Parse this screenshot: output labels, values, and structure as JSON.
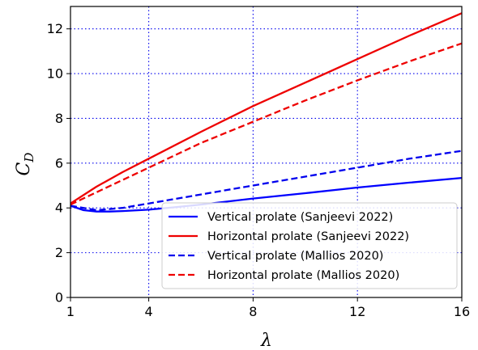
{
  "chart_data": {
    "type": "line",
    "title": "",
    "xlabel": "λ",
    "ylabel": "C",
    "ylabel_subscript": "D",
    "xlim": [
      1,
      16
    ],
    "ylim": [
      0,
      13
    ],
    "xticks": [
      1,
      4,
      8,
      12,
      16
    ],
    "yticks": [
      0,
      2,
      4,
      6,
      8,
      10,
      12
    ],
    "grid": true,
    "grid_color": "#0000ee",
    "legend_position": "lower-right",
    "series": [
      {
        "name": "Vertical prolate (Sanjeevi 2022)",
        "color": "#0000ff",
        "dash": "solid",
        "x": [
          1,
          1.5,
          2,
          2.5,
          3,
          4,
          5,
          6,
          8,
          10,
          12,
          14,
          16
        ],
        "y": [
          4.1,
          3.9,
          3.84,
          3.84,
          3.86,
          3.92,
          4.03,
          4.15,
          4.42,
          4.66,
          4.91,
          5.13,
          5.34
        ]
      },
      {
        "name": "Horizontal prolate (Sanjeevi 2022)",
        "color": "#ee0000",
        "dash": "solid",
        "x": [
          1,
          2,
          3,
          4,
          6,
          8,
          10,
          12,
          14,
          16
        ],
        "y": [
          4.2,
          4.95,
          5.6,
          6.2,
          7.4,
          8.55,
          9.6,
          10.65,
          11.7,
          12.7
        ]
      },
      {
        "name": "Vertical prolate (Mallios 2020)",
        "color": "#0000ee",
        "dash": "dashed",
        "x": [
          1,
          2,
          3,
          4,
          6,
          8,
          10,
          12,
          14,
          16
        ],
        "y": [
          4.1,
          3.9,
          4.0,
          4.2,
          4.6,
          5.0,
          5.4,
          5.8,
          6.2,
          6.55
        ]
      },
      {
        "name": "Horizontal prolate (Mallios 2020)",
        "color": "#ee0000",
        "dash": "dashed",
        "x": [
          1,
          2,
          3,
          4,
          6,
          8,
          10,
          12,
          14,
          16
        ],
        "y": [
          4.15,
          4.7,
          5.25,
          5.8,
          6.9,
          7.85,
          8.8,
          9.7,
          10.55,
          11.35
        ]
      }
    ]
  }
}
